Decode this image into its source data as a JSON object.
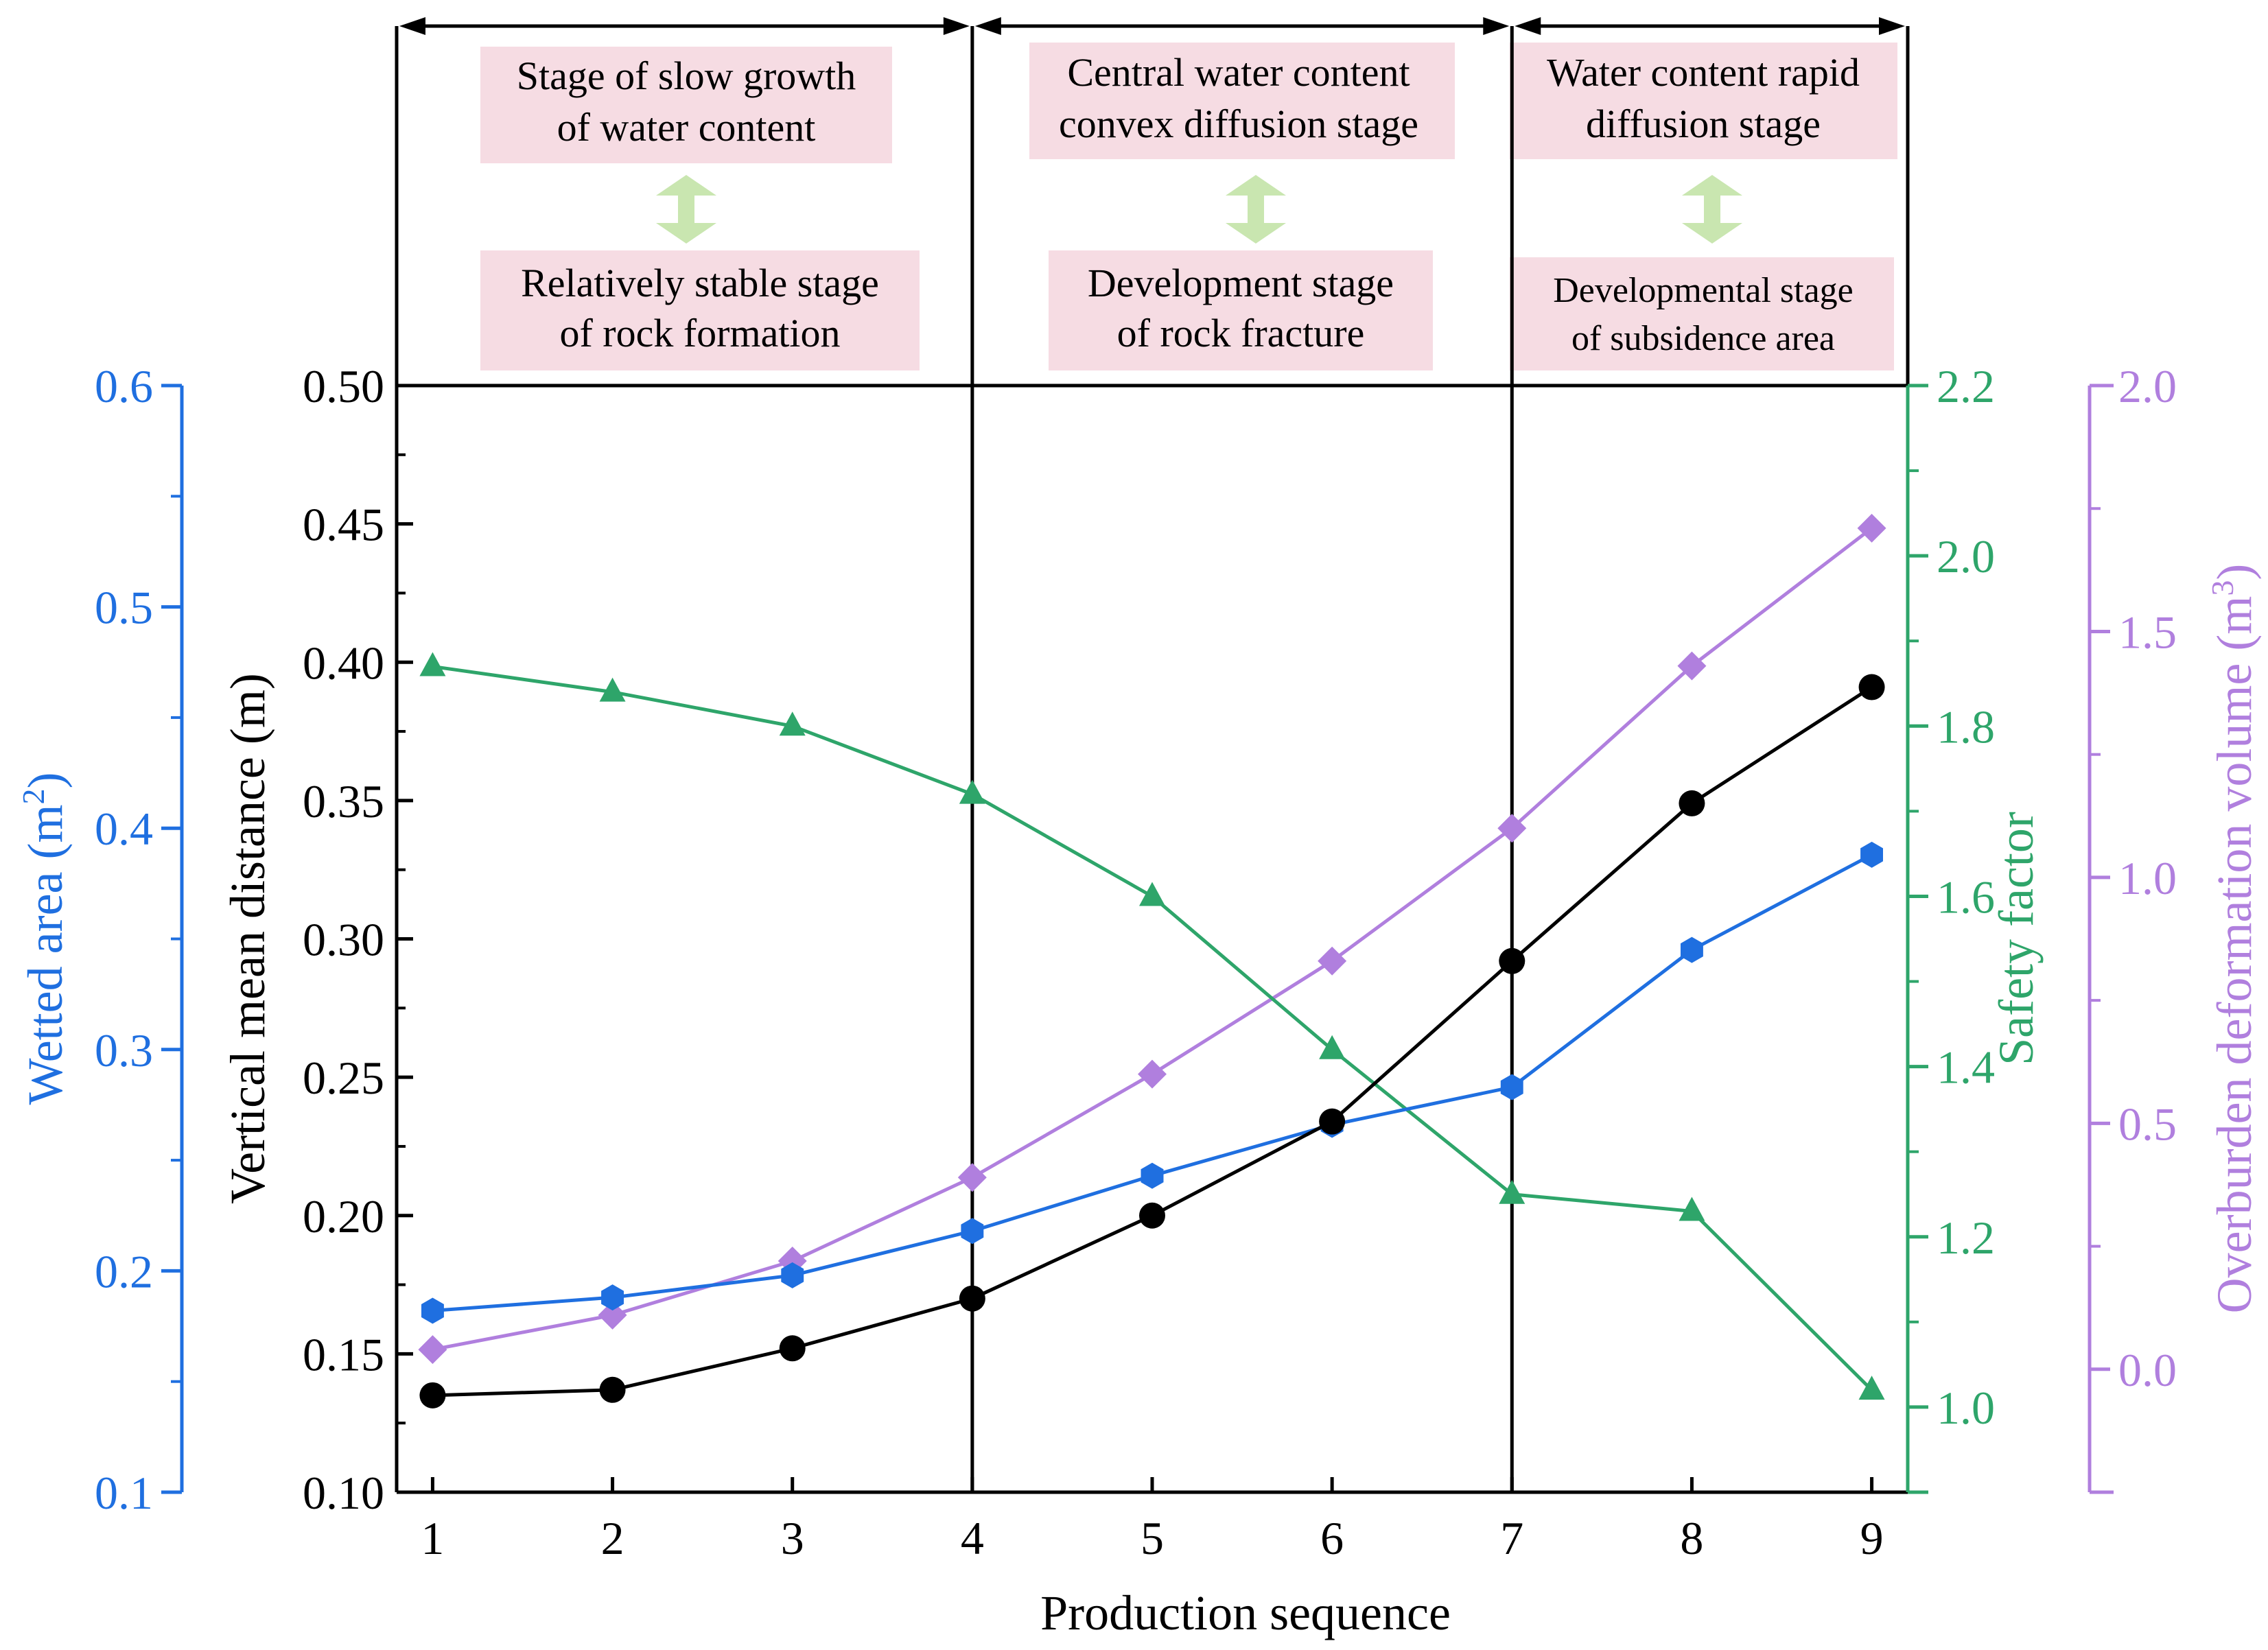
{
  "chart_data": {
    "type": "line",
    "xlabel": "Production sequence",
    "x": [
      1,
      2,
      3,
      4,
      5,
      6,
      7,
      8,
      9
    ],
    "xlim": [
      0.8,
      9.2
    ],
    "axes": {
      "vertical_distance": {
        "label": "Vertical mean distance (m)",
        "range": [
          0.1,
          0.5
        ],
        "ticks": [
          "0.10",
          "0.15",
          "0.20",
          "0.25",
          "0.30",
          "0.35",
          "0.40",
          "0.45",
          "0.50"
        ],
        "color": "#000000"
      },
      "wetted_area": {
        "label_main": "Wetted area (m",
        "label_sup": "2",
        "label_end": ")",
        "range": [
          0.1,
          0.6
        ],
        "ticks": [
          "0.1",
          "0.2",
          "0.3",
          "0.4",
          "0.5",
          "0.6"
        ],
        "color": "#1f6fe0"
      },
      "safety_factor": {
        "label": "Safety factor",
        "range": [
          0.9,
          2.2
        ],
        "ticks": [
          "1.0",
          "1.2",
          "1.4",
          "1.6",
          "1.8",
          "2.0",
          "2.2"
        ],
        "color": "#2ea56a"
      },
      "overburden_volume": {
        "label_main": "Overburden deformation volume (m",
        "label_sup": "3",
        "label_end": ")",
        "range": [
          -0.25,
          2.0
        ],
        "ticks": [
          "0.0",
          "0.5",
          "1.0",
          "1.5",
          "2.0"
        ],
        "color": "#b07fde"
      }
    },
    "series": [
      {
        "name": "Vertical mean distance",
        "axis": "vertical_distance",
        "color": "#000000",
        "marker": "circle",
        "values": [
          0.135,
          0.137,
          0.152,
          0.17,
          0.2,
          0.234,
          0.292,
          0.349,
          0.391
        ]
      },
      {
        "name": "Wetted area",
        "axis": "wetted_area",
        "color": "#1f6fe0",
        "marker": "hexagon",
        "values": [
          0.182,
          0.188,
          0.198,
          0.218,
          0.243,
          0.266,
          0.283,
          0.345,
          0.388
        ]
      },
      {
        "name": "Safety factor",
        "axis": "safety_factor",
        "color": "#2ea56a",
        "marker": "triangle",
        "values": [
          1.87,
          1.84,
          1.8,
          1.72,
          1.6,
          1.42,
          1.25,
          1.23,
          1.02
        ]
      },
      {
        "name": "Overburden deformation volume",
        "axis": "overburden_volume",
        "color": "#b07fde",
        "marker": "diamond",
        "values": [
          0.04,
          0.11,
          0.22,
          0.39,
          0.6,
          0.83,
          1.1,
          1.43,
          1.71
        ]
      }
    ],
    "stage_dividers": [
      4,
      7
    ],
    "stages": [
      {
        "top_lines": [
          "Stage of slow growth",
          "of water content"
        ],
        "bottom_lines": [
          "Relatively stable stage",
          "of rock formation"
        ]
      },
      {
        "top_lines": [
          "Central water content",
          "convex diffusion stage"
        ],
        "bottom_lines": [
          "Development stage",
          "of rock fracture"
        ]
      },
      {
        "top_lines": [
          "Water content rapid",
          "diffusion stage"
        ],
        "bottom_lines": [
          "Developmental stage",
          "of subsidence area"
        ]
      }
    ],
    "colors": {
      "label_box": "#f6dce3",
      "arrow": "#c9e6b0"
    }
  }
}
